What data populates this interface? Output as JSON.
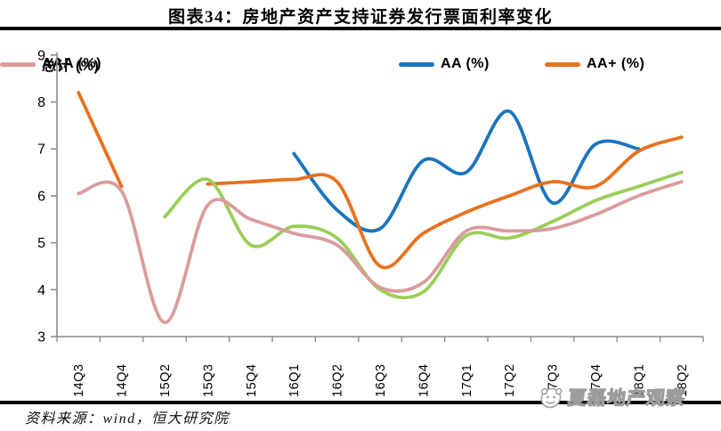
{
  "title": "图表34：房地产资产支持证券发行票面利率变化",
  "source_note": "资料来源：wind，恒大研究院",
  "watermark": "夏磊地产观察",
  "colors": {
    "aa_blue": "#1b75bc",
    "aaplus_orange": "#e8721f",
    "aaa_green": "#9acd5a",
    "total_pink": "#d99c9d",
    "axis_gray": "#8c8c8c",
    "divider_black": "#000000",
    "tick_label": "#000000"
  },
  "chart_data": {
    "type": "line",
    "title": "图表34：房地产资产支持证券发行票面利率变化",
    "xlabel": "",
    "ylabel": "",
    "ylim": [
      3,
      9
    ],
    "ytick_step": 1,
    "yticks": [
      3,
      4,
      5,
      6,
      7,
      8,
      9
    ],
    "grid": false,
    "legend_position": "top",
    "smoothed_lines": true,
    "categories": [
      "14Q3",
      "14Q4",
      "15Q2",
      "15Q3",
      "15Q4",
      "16Q1",
      "16Q2",
      "16Q3",
      "16Q4",
      "17Q1",
      "17Q2",
      "17Q3",
      "17Q4",
      "18Q1",
      "18Q2"
    ],
    "series": [
      {
        "key": "aa",
        "name": "AA (%)",
        "color": "#1b75bc",
        "values": [
          null,
          null,
          null,
          null,
          null,
          6.9,
          5.7,
          5.3,
          6.75,
          6.5,
          7.8,
          5.85,
          7.1,
          7.0,
          null
        ]
      },
      {
        "key": "aa-plus",
        "name": "AA+ (%)",
        "color": "#e8721f",
        "values": [
          8.2,
          6.2,
          null,
          6.25,
          6.3,
          6.35,
          6.3,
          4.5,
          5.2,
          5.65,
          6.0,
          6.3,
          6.2,
          6.95,
          7.25
        ]
      },
      {
        "key": "aaa",
        "name": "AAA (%)",
        "color": "#9acd5a",
        "values": [
          null,
          null,
          5.55,
          6.35,
          4.95,
          5.35,
          5.1,
          4.0,
          3.95,
          5.15,
          5.1,
          5.45,
          5.9,
          6.2,
          6.5
        ]
      },
      {
        "key": "total",
        "name": "总计 (%)",
        "color": "#d99c9d",
        "values": [
          6.05,
          6.1,
          3.3,
          5.8,
          5.5,
          5.2,
          4.95,
          4.05,
          4.15,
          5.25,
          5.25,
          5.3,
          5.6,
          6.0,
          6.3
        ]
      }
    ]
  }
}
